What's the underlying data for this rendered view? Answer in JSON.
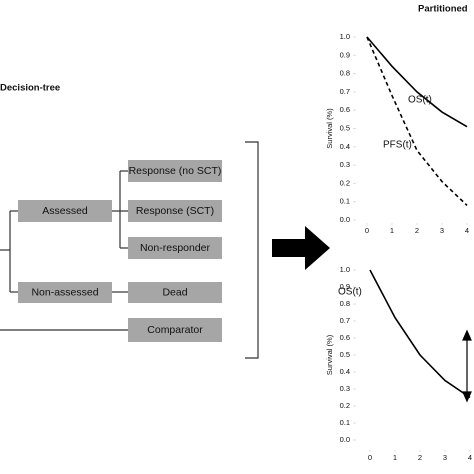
{
  "diagram": {
    "title": "Decision-tree",
    "panel_title": "Partitioned",
    "nodes": [
      {
        "label": "Assessed"
      },
      {
        "label": "Non-assessed"
      },
      {
        "label": "Response (no SCT)"
      },
      {
        "label": "Response (SCT)"
      },
      {
        "label": "Non-responder"
      },
      {
        "label": "Dead"
      },
      {
        "label": "Comparator"
      }
    ]
  },
  "chart_data": [
    {
      "type": "line",
      "ylabel": "Survival (%)",
      "x": [
        0,
        1,
        2,
        3,
        4
      ],
      "xlim": [
        0,
        4
      ],
      "xticks": [
        0,
        1,
        2,
        3,
        4
      ],
      "ylim": [
        0,
        1
      ],
      "yticks": [
        {
          "value": 0,
          "label": "0.0"
        },
        {
          "value": 0.1,
          "label": "0.1"
        },
        {
          "value": 0.2,
          "label": "0.2"
        },
        {
          "value": 0.3,
          "label": "0.3"
        },
        {
          "value": 0.4,
          "label": "0.4"
        },
        {
          "value": 0.5,
          "label": "0.5"
        },
        {
          "value": 0.6,
          "label": "0.6"
        },
        {
          "value": 0.7,
          "label": "0.7"
        },
        {
          "value": 0.8,
          "label": "0.8"
        },
        {
          "value": 0.9,
          "label": "0.9"
        },
        {
          "value": 1,
          "label": "1.0"
        }
      ],
      "series": [
        {
          "name": "OS(t)",
          "color": "#000000",
          "line_style": "solid",
          "values": [
            1.0,
            0.84,
            0.7,
            0.59,
            0.51
          ]
        },
        {
          "name": "PFS(t)",
          "color": "#000000",
          "line_style": "dashed",
          "values": [
            1.0,
            0.68,
            0.38,
            0.21,
            0.08
          ]
        }
      ]
    },
    {
      "type": "line",
      "ylabel": "Survival (%)",
      "x": [
        0,
        1,
        2,
        3,
        4
      ],
      "xlim": [
        0,
        4
      ],
      "xticks": [
        0,
        1,
        2,
        3,
        4
      ],
      "ylim": [
        0,
        1
      ],
      "yticks": [
        {
          "value": 0,
          "label": "0.0"
        },
        {
          "value": 0.1,
          "label": "0.1"
        },
        {
          "value": 0.2,
          "label": "0.2"
        },
        {
          "value": 0.3,
          "label": "0.3"
        },
        {
          "value": 0.4,
          "label": "0.4"
        },
        {
          "value": 0.5,
          "label": "0.5"
        },
        {
          "value": 0.6,
          "label": "0.6"
        },
        {
          "value": 0.7,
          "label": "0.7"
        },
        {
          "value": 0.8,
          "label": "0.8"
        },
        {
          "value": 0.9,
          "label": "0.9"
        },
        {
          "value": 1,
          "label": "1.0"
        }
      ],
      "series": [
        {
          "name": "OS(t)",
          "color": "#000000",
          "line_style": "solid",
          "values": [
            1.0,
            0.72,
            0.5,
            0.35,
            0.25
          ]
        }
      ]
    }
  ]
}
